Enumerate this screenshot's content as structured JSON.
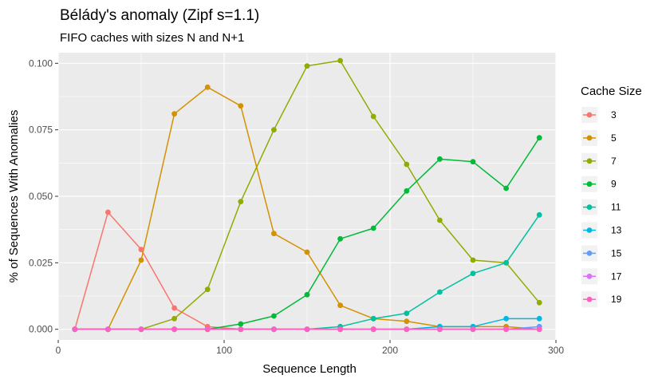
{
  "chart_data": {
    "type": "line",
    "title": "Bélády's anomaly (Zipf s=1.1)",
    "subtitle": "FIFO caches with sizes N and N+1",
    "xlabel": "Sequence Length",
    "ylabel": "% of Sequences With Anomalies",
    "xlim": [
      0,
      300
    ],
    "ylim": [
      -0.004,
      0.104
    ],
    "x_ticks": [
      0,
      100,
      200,
      300
    ],
    "x_tick_labels": [
      "0",
      "100",
      "200",
      "300"
    ],
    "y_ticks": [
      0,
      0.025,
      0.05,
      0.075,
      0.1
    ],
    "y_tick_labels": [
      "0.000",
      "0.025",
      "0.050",
      "0.075",
      "0.100"
    ],
    "grid": true,
    "legend_title": "Cache Size",
    "legend_position": "right",
    "x": [
      10,
      30,
      50,
      70,
      90,
      110,
      130,
      150,
      170,
      190,
      210,
      230,
      250,
      270,
      290
    ],
    "series": [
      {
        "name": "3",
        "color": "#F8766D",
        "values": [
          0,
          0.044,
          0.03,
          0.008,
          0.001,
          0,
          0,
          0,
          0,
          0,
          0,
          0,
          0,
          0,
          0
        ]
      },
      {
        "name": "5",
        "color": "#D39200",
        "values": [
          0,
          0,
          0.026,
          0.081,
          0.091,
          0.084,
          0.036,
          0.029,
          0.009,
          0.004,
          0.003,
          0.001,
          0.001,
          0.001,
          0
        ]
      },
      {
        "name": "7",
        "color": "#93AA00",
        "values": [
          0,
          0,
          0,
          0.004,
          0.015,
          0.048,
          0.075,
          0.099,
          0.101,
          0.08,
          0.062,
          0.041,
          0.026,
          0.025,
          0.01
        ]
      },
      {
        "name": "9",
        "color": "#00BA38",
        "values": [
          0,
          0,
          0,
          0,
          0,
          0.002,
          0.005,
          0.013,
          0.034,
          0.038,
          0.052,
          0.064,
          0.063,
          0.053,
          0.072
        ]
      },
      {
        "name": "11",
        "color": "#00C19F",
        "values": [
          0,
          0,
          0,
          0,
          0,
          0,
          0,
          0,
          0.001,
          0.004,
          0.006,
          0.014,
          0.021,
          0.025,
          0.043
        ]
      },
      {
        "name": "13",
        "color": "#00B9E3",
        "values": [
          0,
          0,
          0,
          0,
          0,
          0,
          0,
          0,
          0,
          0,
          0,
          0.001,
          0.001,
          0.004,
          0.004
        ]
      },
      {
        "name": "15",
        "color": "#619CFF",
        "values": [
          0,
          0,
          0,
          0,
          0,
          0,
          0,
          0,
          0,
          0,
          0,
          0,
          0,
          0,
          0.001
        ]
      },
      {
        "name": "17",
        "color": "#DB72FB",
        "values": [
          0,
          0,
          0,
          0,
          0,
          0,
          0,
          0,
          0,
          0,
          0,
          0,
          0,
          0,
          0
        ]
      },
      {
        "name": "19",
        "color": "#FF61C3",
        "values": [
          0,
          0,
          0,
          0,
          0,
          0,
          0,
          0,
          0,
          0,
          0,
          0,
          0,
          0,
          0
        ]
      }
    ],
    "panel_color": "#EBEBEB",
    "grid_color": "#FFFFFF"
  }
}
